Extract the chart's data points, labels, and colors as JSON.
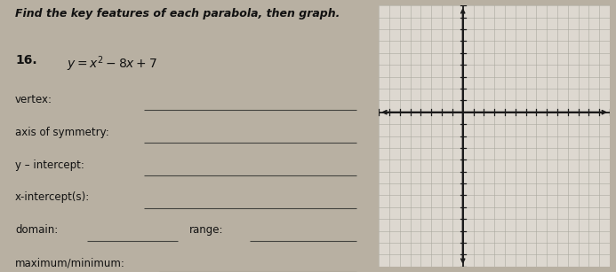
{
  "title": "Find the key features of each parabola, then graph.",
  "problem_number": "16.",
  "labels": {
    "vertex": "vertex:",
    "axis_of_symmetry": "axis of symmetry:",
    "y_intercept": "y – intercept:",
    "x_intercepts": "x-intercept(s):",
    "domain": "domain:",
    "range": "range:",
    "max_min": "maximum/minimum:"
  },
  "bg_color": "#b8b0a2",
  "grid_bg": "#ddd8d0",
  "text_color": "#111111",
  "grid_color": "#aaa89e",
  "axis_color": "#1a1a1a",
  "x_min": -8,
  "x_max": 14,
  "y_min": -13,
  "y_max": 9,
  "font_size_title": 9.0,
  "font_size_label": 8.5,
  "font_size_eq": 10.0
}
